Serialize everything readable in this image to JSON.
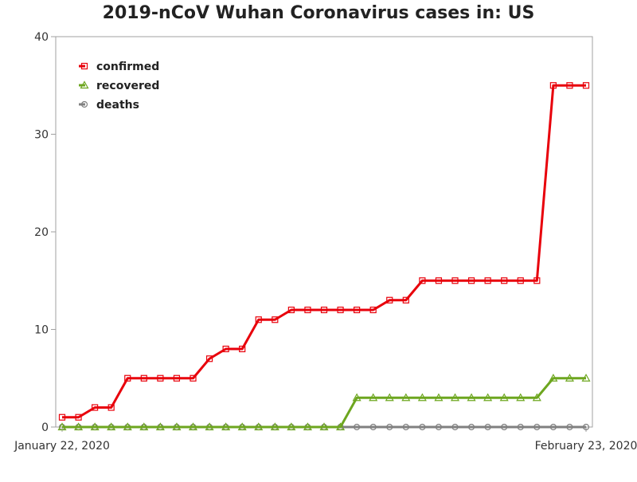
{
  "chart_data": {
    "type": "line",
    "title": "2019-nCoV Wuhan Coronavirus cases in: US",
    "xlabel": "",
    "ylabel": "",
    "x_tick_labels": [
      "January 22, 2020",
      "February 23, 2020"
    ],
    "x_count": 33,
    "ylim": [
      0,
      40
    ],
    "y_ticks": [
      0,
      10,
      20,
      30,
      40
    ],
    "grid": false,
    "legend_position": "top-left",
    "series": [
      {
        "name": "confirmed",
        "color": "#e8000b",
        "marker": "square",
        "values": [
          1,
          1,
          2,
          2,
          5,
          5,
          5,
          5,
          5,
          7,
          8,
          8,
          11,
          11,
          12,
          12,
          12,
          12,
          12,
          12,
          13,
          13,
          15,
          15,
          15,
          15,
          15,
          15,
          15,
          15,
          35,
          35,
          35
        ]
      },
      {
        "name": "recovered",
        "color": "#6da61f",
        "marker": "triangle",
        "values": [
          0,
          0,
          0,
          0,
          0,
          0,
          0,
          0,
          0,
          0,
          0,
          0,
          0,
          0,
          0,
          0,
          0,
          0,
          3,
          3,
          3,
          3,
          3,
          3,
          3,
          3,
          3,
          3,
          3,
          3,
          5,
          5,
          5
        ]
      },
      {
        "name": "deaths",
        "color": "#808080",
        "marker": "circle",
        "values": [
          0,
          0,
          0,
          0,
          0,
          0,
          0,
          0,
          0,
          0,
          0,
          0,
          0,
          0,
          0,
          0,
          0,
          0,
          0,
          0,
          0,
          0,
          0,
          0,
          0,
          0,
          0,
          0,
          0,
          0,
          0,
          0,
          0
        ]
      }
    ]
  }
}
